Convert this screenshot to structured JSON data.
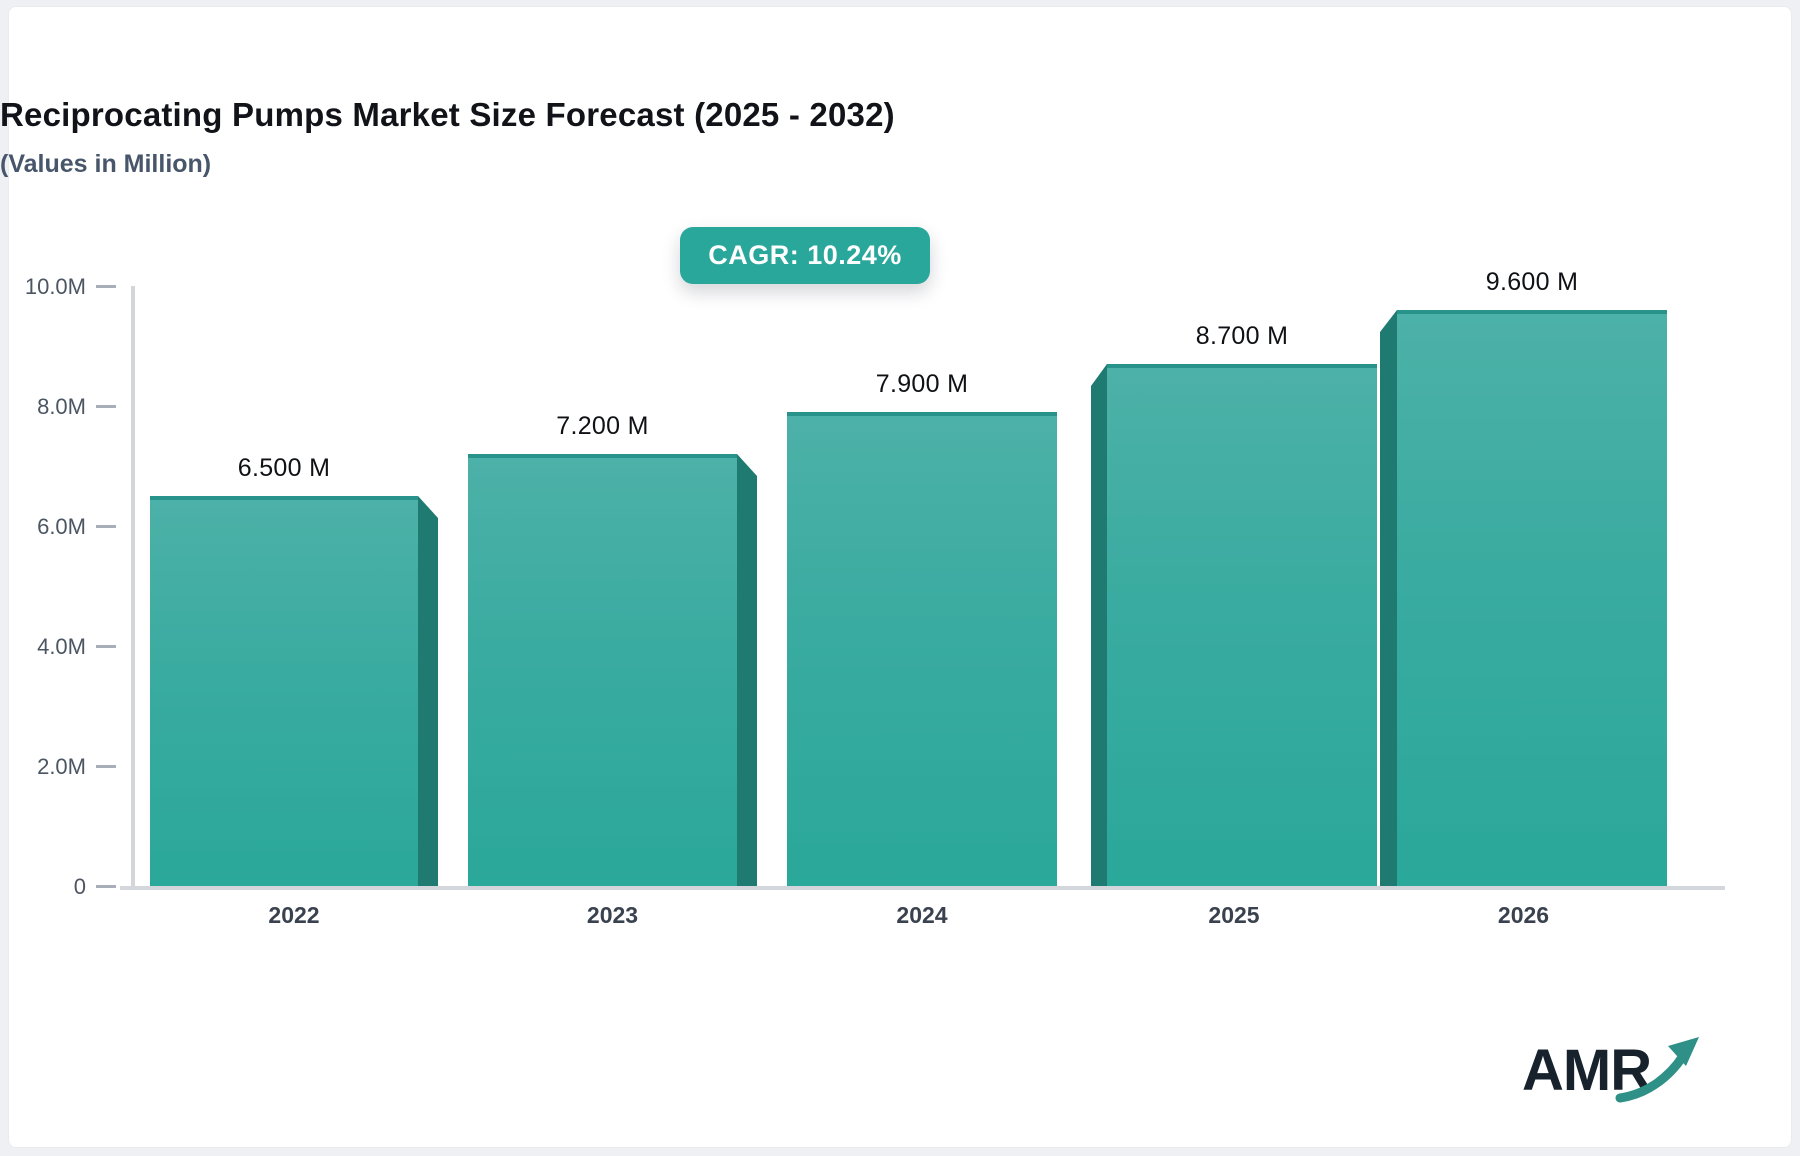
{
  "page": {
    "background": "#eef0f3",
    "card_background": "#ffffff"
  },
  "header": {
    "title": "Reciprocating Pumps Market Size Forecast (2025 - 2032)",
    "subtitle": "(Values in Million)",
    "cagr_badge": "CAGR: 10.24%"
  },
  "chart_data": {
    "type": "bar",
    "title": "Reciprocating Pumps Market Size Forecast (2025 - 2032)",
    "subtitle": "(Values in Million)",
    "annotation": "CAGR: 10.24%",
    "categories": [
      "2022",
      "2023",
      "2024",
      "2025",
      "2026"
    ],
    "values": [
      6.5,
      7.2,
      7.9,
      8.7,
      9.6
    ],
    "value_labels": [
      "6.500 M",
      "7.200 M",
      "7.900 M",
      "8.700 M",
      "9.600 M"
    ],
    "unit": "Million",
    "xlabel": "",
    "ylabel": "",
    "ylim": [
      0,
      10
    ],
    "y_ticks": [
      {
        "label": "10.0M",
        "value": 10
      },
      {
        "label": "8.0M",
        "value": 8
      },
      {
        "label": "6.0M",
        "value": 6
      },
      {
        "label": "4.0M",
        "value": 4
      },
      {
        "label": "2.0M",
        "value": 2
      },
      {
        "label": "0",
        "value": 0
      }
    ],
    "grid": false,
    "legend": "none",
    "bar_color_top": "#4db1a8",
    "bar_color_bottom": "#2aa89a",
    "bar_side_color": "#1f7b72",
    "accent_color": "#2aa79b"
  },
  "logo": {
    "text": "AMR"
  }
}
